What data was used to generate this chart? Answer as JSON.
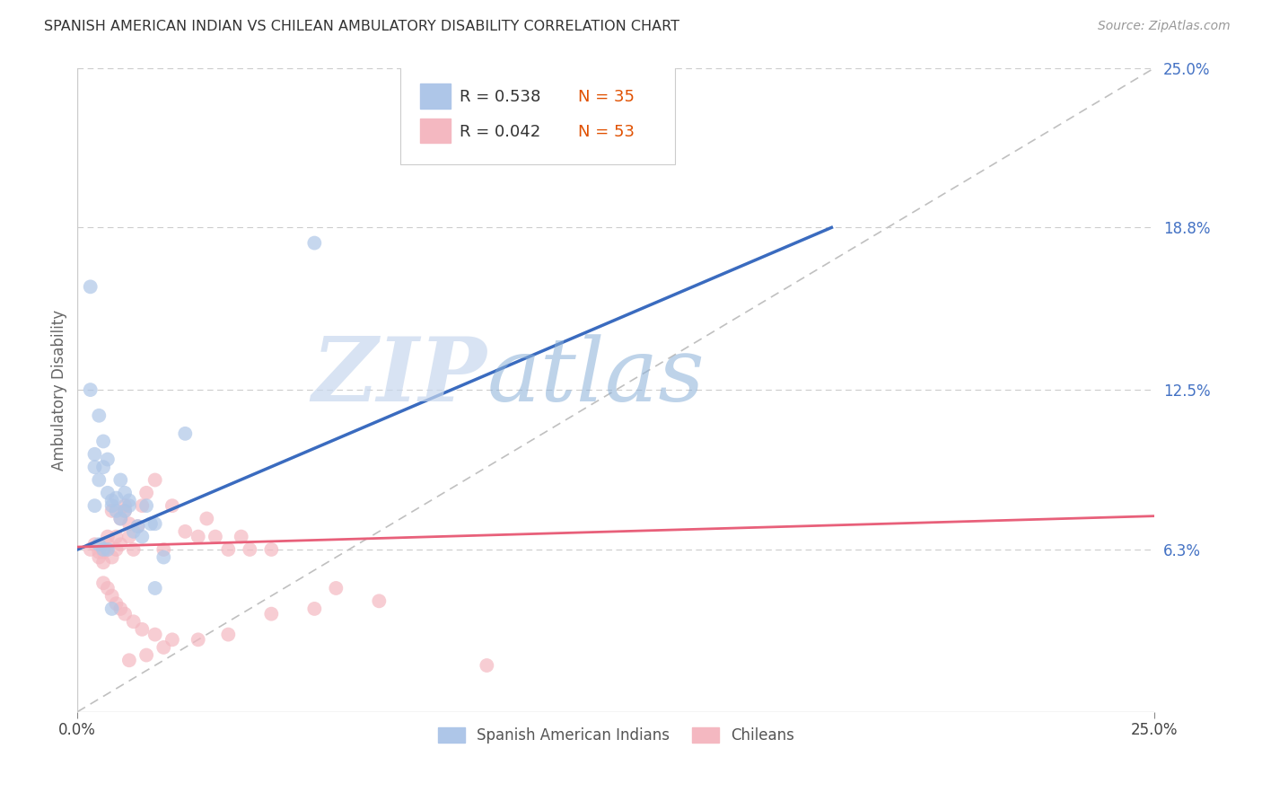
{
  "title": "SPANISH AMERICAN INDIAN VS CHILEAN AMBULATORY DISABILITY CORRELATION CHART",
  "source": "Source: ZipAtlas.com",
  "ylabel": "Ambulatory Disability",
  "xlim": [
    0.0,
    0.25
  ],
  "ylim": [
    0.0,
    0.25
  ],
  "ytick_labels": [
    "6.3%",
    "12.5%",
    "18.8%",
    "25.0%"
  ],
  "ytick_values": [
    0.063,
    0.125,
    0.188,
    0.25
  ],
  "legend_blue_r": "R = 0.538",
  "legend_blue_n": "N = 35",
  "legend_pink_r": "R = 0.042",
  "legend_pink_n": "N = 53",
  "blue_color": "#aec6e8",
  "pink_color": "#f4b8c1",
  "blue_line_color": "#3a6bbf",
  "pink_line_color": "#e8607a",
  "diag_line_color": "#c0c0c0",
  "watermark_zip": "ZIP",
  "watermark_atlas": "atlas",
  "blue_line_x0": 0.0,
  "blue_line_y0": 0.063,
  "blue_line_x1": 0.175,
  "blue_line_y1": 0.188,
  "pink_line_x0": 0.0,
  "pink_line_y0": 0.064,
  "pink_line_x1": 0.25,
  "pink_line_y1": 0.076,
  "blue_points_x": [
    0.003,
    0.004,
    0.004,
    0.005,
    0.005,
    0.006,
    0.006,
    0.007,
    0.007,
    0.008,
    0.008,
    0.009,
    0.009,
    0.01,
    0.01,
    0.011,
    0.011,
    0.012,
    0.012,
    0.013,
    0.014,
    0.015,
    0.016,
    0.017,
    0.018,
    0.02,
    0.003,
    0.004,
    0.005,
    0.006,
    0.007,
    0.008,
    0.055,
    0.025,
    0.018
  ],
  "blue_points_y": [
    0.125,
    0.095,
    0.1,
    0.115,
    0.09,
    0.105,
    0.095,
    0.098,
    0.085,
    0.082,
    0.08,
    0.078,
    0.083,
    0.075,
    0.09,
    0.078,
    0.085,
    0.08,
    0.082,
    0.07,
    0.072,
    0.068,
    0.08,
    0.073,
    0.073,
    0.06,
    0.165,
    0.08,
    0.065,
    0.063,
    0.063,
    0.04,
    0.182,
    0.108,
    0.048
  ],
  "pink_points_x": [
    0.003,
    0.004,
    0.005,
    0.005,
    0.006,
    0.006,
    0.007,
    0.007,
    0.008,
    0.008,
    0.009,
    0.009,
    0.01,
    0.01,
    0.011,
    0.011,
    0.012,
    0.012,
    0.013,
    0.014,
    0.015,
    0.016,
    0.018,
    0.02,
    0.022,
    0.025,
    0.028,
    0.03,
    0.032,
    0.035,
    0.038,
    0.04,
    0.045,
    0.06,
    0.07,
    0.006,
    0.007,
    0.008,
    0.009,
    0.01,
    0.011,
    0.013,
    0.015,
    0.018,
    0.022,
    0.055,
    0.045,
    0.035,
    0.028,
    0.02,
    0.016,
    0.012,
    0.095
  ],
  "pink_points_y": [
    0.063,
    0.065,
    0.06,
    0.062,
    0.058,
    0.062,
    0.068,
    0.065,
    0.06,
    0.078,
    0.068,
    0.063,
    0.075,
    0.065,
    0.08,
    0.078,
    0.073,
    0.068,
    0.063,
    0.072,
    0.08,
    0.085,
    0.09,
    0.063,
    0.08,
    0.07,
    0.068,
    0.075,
    0.068,
    0.063,
    0.068,
    0.063,
    0.063,
    0.048,
    0.043,
    0.05,
    0.048,
    0.045,
    0.042,
    0.04,
    0.038,
    0.035,
    0.032,
    0.03,
    0.028,
    0.04,
    0.038,
    0.03,
    0.028,
    0.025,
    0.022,
    0.02,
    0.018
  ]
}
